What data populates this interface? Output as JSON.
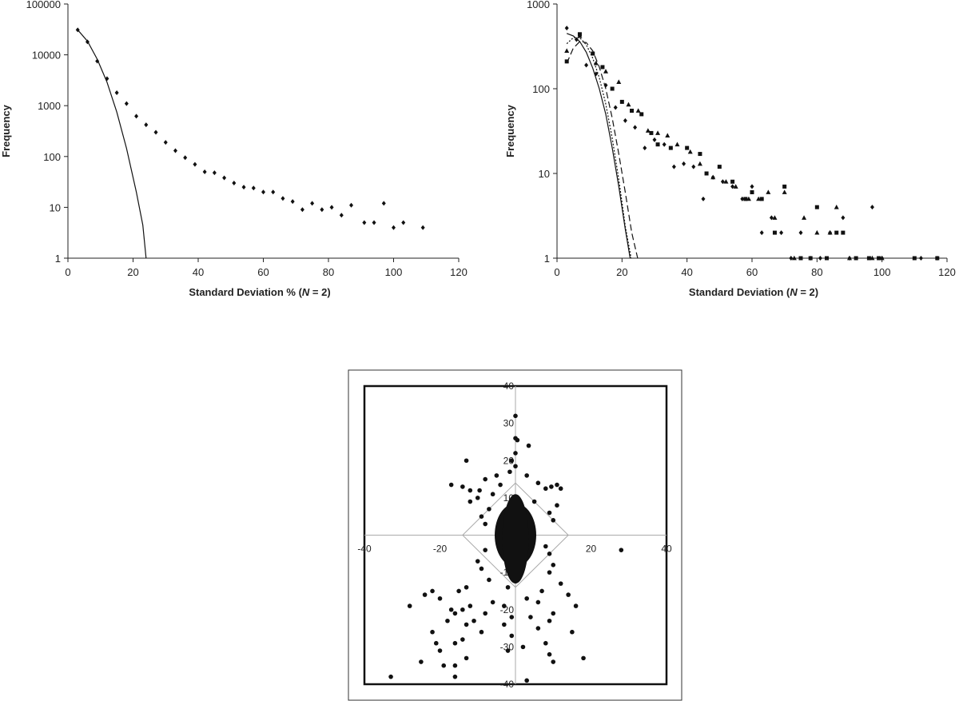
{
  "chart_data": [
    {
      "type": "scatter",
      "title": "",
      "xlabel": "Standard Deviation % (",
      "xlabel_italic": "N",
      "xlabel_tail": " = 2)",
      "ylabel": "Frequency",
      "xlim": [
        0,
        120
      ],
      "ylim": [
        1,
        100000
      ],
      "y_scale": "log",
      "x_ticks": [
        0,
        20,
        40,
        60,
        80,
        100,
        120
      ],
      "y_ticks": [
        1,
        10,
        100,
        1000,
        10000,
        100000
      ],
      "grid": false,
      "series": [
        {
          "marker": "diamond",
          "points": [
            [
              3,
              31000
            ],
            [
              6,
              18000
            ],
            [
              9,
              7500
            ],
            [
              12,
              3400
            ],
            [
              15,
              1800
            ],
            [
              18,
              1100
            ],
            [
              21,
              620
            ],
            [
              24,
              420
            ],
            [
              27,
              300
            ],
            [
              30,
              190
            ],
            [
              33,
              130
            ],
            [
              36,
              95
            ],
            [
              39,
              70
            ],
            [
              42,
              50
            ],
            [
              45,
              48
            ],
            [
              48,
              38
            ],
            [
              51,
              30
            ],
            [
              54,
              25
            ],
            [
              57,
              24
            ],
            [
              60,
              20
            ],
            [
              63,
              20
            ],
            [
              66,
              15
            ],
            [
              69,
              13
            ],
            [
              72,
              9
            ],
            [
              75,
              12
            ],
            [
              78,
              9
            ],
            [
              81,
              10
            ],
            [
              84,
              7
            ],
            [
              87,
              11
            ],
            [
              91,
              5
            ],
            [
              94,
              5
            ],
            [
              97,
              12
            ],
            [
              100,
              4
            ],
            [
              103,
              5
            ],
            [
              109,
              4
            ]
          ]
        },
        {
          "style": "solid-line",
          "points": [
            [
              3,
              31000
            ],
            [
              6,
              18500
            ],
            [
              9,
              8200
            ],
            [
              12,
              2900
            ],
            [
              15,
              750
            ],
            [
              18,
              145
            ],
            [
              21,
              20
            ],
            [
              23,
              4.5
            ],
            [
              24,
              1
            ]
          ]
        }
      ]
    },
    {
      "type": "scatter",
      "title": "",
      "xlabel": "Standard Deviation (",
      "xlabel_italic": "N",
      "xlabel_tail": " = 2)",
      "ylabel": "Frequency",
      "xlim": [
        0,
        120
      ],
      "ylim": [
        1,
        1000
      ],
      "y_scale": "log",
      "x_ticks": [
        0,
        20,
        40,
        60,
        80,
        100,
        120
      ],
      "y_ticks": [
        1,
        10,
        100,
        1000
      ],
      "grid": false,
      "series": [
        {
          "marker": "diamond",
          "points": [
            [
              3,
              520
            ],
            [
              6,
              380
            ],
            [
              9,
              190
            ],
            [
              12,
              150
            ],
            [
              15,
              110
            ],
            [
              18,
              60
            ],
            [
              21,
              42
            ],
            [
              24,
              35
            ],
            [
              27,
              20
            ],
            [
              30,
              25
            ],
            [
              33,
              22
            ],
            [
              36,
              12
            ],
            [
              39,
              13
            ],
            [
              42,
              12
            ],
            [
              45,
              5
            ],
            [
              48,
              9
            ],
            [
              51,
              8
            ],
            [
              54,
              7
            ],
            [
              57,
              5
            ],
            [
              60,
              7
            ],
            [
              63,
              2
            ],
            [
              66,
              3
            ],
            [
              69,
              2
            ],
            [
              72,
              1
            ],
            [
              75,
              2
            ],
            [
              78,
              1
            ],
            [
              81,
              1
            ],
            [
              84,
              2
            ],
            [
              88,
              3
            ],
            [
              90,
              1
            ],
            [
              97,
              4
            ],
            [
              100,
              1
            ],
            [
              112,
              1
            ],
            [
              117,
              1
            ]
          ]
        },
        {
          "marker": "square",
          "points": [
            [
              3,
              210
            ],
            [
              7,
              440
            ],
            [
              11,
              260
            ],
            [
              14,
              180
            ],
            [
              17,
              100
            ],
            [
              20,
              70
            ],
            [
              23,
              55
            ],
            [
              26,
              50
            ],
            [
              29,
              30
            ],
            [
              31,
              22
            ],
            [
              35,
              20
            ],
            [
              40,
              20
            ],
            [
              44,
              17
            ],
            [
              46,
              10
            ],
            [
              50,
              12
            ],
            [
              54,
              8
            ],
            [
              58,
              5
            ],
            [
              60,
              6
            ],
            [
              63,
              5
            ],
            [
              67,
              2
            ],
            [
              70,
              7
            ],
            [
              75,
              1
            ],
            [
              78,
              1
            ],
            [
              80,
              4
            ],
            [
              83,
              1
            ],
            [
              86,
              2
            ],
            [
              88,
              2
            ],
            [
              92,
              1
            ],
            [
              96,
              1
            ],
            [
              99,
              1
            ],
            [
              110,
              1
            ],
            [
              117,
              1
            ]
          ]
        },
        {
          "marker": "triangle",
          "points": [
            [
              3,
              280
            ],
            [
              7,
              420
            ],
            [
              12,
              200
            ],
            [
              15,
              160
            ],
            [
              19,
              120
            ],
            [
              22,
              65
            ],
            [
              25,
              55
            ],
            [
              28,
              32
            ],
            [
              31,
              30
            ],
            [
              34,
              28
            ],
            [
              37,
              22
            ],
            [
              41,
              18
            ],
            [
              44,
              13
            ],
            [
              48,
              9
            ],
            [
              52,
              8
            ],
            [
              55,
              7
            ],
            [
              59,
              5
            ],
            [
              62,
              5
            ],
            [
              65,
              6
            ],
            [
              67,
              3
            ],
            [
              70,
              6
            ],
            [
              73,
              1
            ],
            [
              76,
              3
            ],
            [
              80,
              2
            ],
            [
              84,
              2
            ],
            [
              86,
              4
            ],
            [
              90,
              1
            ],
            [
              97,
              1
            ],
            [
              100,
              1
            ]
          ]
        },
        {
          "style": "solid-line",
          "points": [
            [
              3,
              450
            ],
            [
              5,
              420
            ],
            [
              7,
              360
            ],
            [
              9,
              270
            ],
            [
              11,
              175
            ],
            [
              13,
              100
            ],
            [
              15,
              50
            ],
            [
              17,
              20
            ],
            [
              19,
              7
            ],
            [
              21,
              2.2
            ],
            [
              22.5,
              1
            ]
          ]
        },
        {
          "style": "dotted-line",
          "points": [
            [
              3,
              340
            ],
            [
              5,
              400
            ],
            [
              7,
              400
            ],
            [
              9,
              330
            ],
            [
              11,
              230
            ],
            [
              13,
              135
            ],
            [
              15,
              66
            ],
            [
              17,
              26
            ],
            [
              19,
              8.5
            ],
            [
              21,
              2.4
            ],
            [
              22.8,
              1
            ]
          ]
        },
        {
          "style": "dashed-line",
          "points": [
            [
              3,
              200
            ],
            [
              5,
              300
            ],
            [
              7,
              360
            ],
            [
              9,
              350
            ],
            [
              11,
              280
            ],
            [
              13,
              180
            ],
            [
              15,
              100
            ],
            [
              17,
              45
            ],
            [
              19,
              17
            ],
            [
              21,
              6
            ],
            [
              23,
              2
            ],
            [
              24.8,
              1
            ]
          ]
        }
      ]
    },
    {
      "type": "scatter",
      "title": "",
      "xlabel": "",
      "ylabel": "",
      "xlim": [
        -40,
        40
      ],
      "ylim": [
        -40,
        40
      ],
      "x_ticks": [
        -40,
        -20,
        20,
        40
      ],
      "y_ticks": [
        -40,
        -30,
        -20,
        -10,
        10,
        20,
        30,
        40
      ],
      "grid": false,
      "bounding_square": [
        -40,
        40
      ],
      "diamond_half_width": 14,
      "series": [
        {
          "marker": "filled-circle",
          "points": [
            [
              0,
              32
            ],
            [
              0,
              26
            ],
            [
              0.5,
              25.5
            ],
            [
              3.5,
              24
            ],
            [
              0,
              22
            ],
            [
              -1,
              20
            ],
            [
              -13,
              20
            ],
            [
              0,
              18.5
            ],
            [
              -1.5,
              17
            ],
            [
              3,
              16
            ],
            [
              -5,
              16
            ],
            [
              -8,
              15
            ],
            [
              6,
              14
            ],
            [
              -4,
              13.5
            ],
            [
              -17,
              13.5
            ],
            [
              -14,
              13
            ],
            [
              -12,
              12
            ],
            [
              11,
              13.5
            ],
            [
              -9.5,
              12
            ],
            [
              -6,
              11
            ],
            [
              8,
              12.5
            ],
            [
              9.5,
              13
            ],
            [
              12,
              12.5
            ],
            [
              -10,
              10
            ],
            [
              -12,
              9
            ],
            [
              5,
              9
            ],
            [
              11,
              8
            ],
            [
              -7,
              7
            ],
            [
              9,
              6
            ],
            [
              -9,
              5
            ],
            [
              10,
              4
            ],
            [
              -8,
              3
            ],
            [
              8,
              -3
            ],
            [
              -8,
              -4
            ],
            [
              9,
              -5
            ],
            [
              -10,
              -7
            ],
            [
              10,
              -8
            ],
            [
              -9,
              -9
            ],
            [
              9,
              -10
            ],
            [
              -7,
              -12
            ],
            [
              12,
              -13
            ],
            [
              -13,
              -14
            ],
            [
              -2,
              -14
            ],
            [
              7,
              -15
            ],
            [
              -15,
              -15
            ],
            [
              14,
              -16
            ],
            [
              -22,
              -15
            ],
            [
              -24,
              -16
            ],
            [
              -20,
              -17
            ],
            [
              3,
              -17
            ],
            [
              -6,
              -18
            ],
            [
              6,
              -18
            ],
            [
              -3,
              -19
            ],
            [
              -12,
              -19
            ],
            [
              -17,
              -20
            ],
            [
              16,
              -19
            ],
            [
              -28,
              -19
            ],
            [
              -8,
              -21
            ],
            [
              10,
              -21
            ],
            [
              -14,
              -20
            ],
            [
              -16,
              -21
            ],
            [
              -1,
              -22
            ],
            [
              4,
              -22
            ],
            [
              -11,
              -23
            ],
            [
              -18,
              -23
            ],
            [
              9,
              -23
            ],
            [
              -3,
              -24
            ],
            [
              6,
              -25
            ],
            [
              -13,
              -24
            ],
            [
              -9,
              -26
            ],
            [
              -22,
              -26
            ],
            [
              15,
              -26
            ],
            [
              -1,
              -27
            ],
            [
              -14,
              -28
            ],
            [
              -21,
              -29
            ],
            [
              2,
              -30
            ],
            [
              8,
              -29
            ],
            [
              -2,
              -31
            ],
            [
              -16,
              -29
            ],
            [
              -20,
              -31
            ],
            [
              -13,
              -33
            ],
            [
              9,
              -32
            ],
            [
              -25,
              -34
            ],
            [
              -19,
              -35
            ],
            [
              -16,
              -35
            ],
            [
              10,
              -34
            ],
            [
              18,
              -33
            ],
            [
              -16,
              -38
            ],
            [
              -33,
              -38
            ],
            [
              3,
              -39
            ],
            [
              28,
              -4
            ]
          ]
        }
      ]
    }
  ]
}
